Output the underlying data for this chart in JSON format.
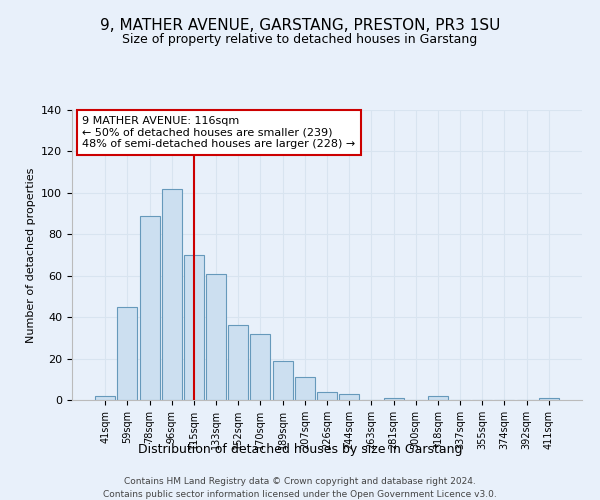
{
  "title": "9, MATHER AVENUE, GARSTANG, PRESTON, PR3 1SU",
  "subtitle": "Size of property relative to detached houses in Garstang",
  "xlabel": "Distribution of detached houses by size in Garstang",
  "ylabel": "Number of detached properties",
  "bar_labels": [
    "41sqm",
    "59sqm",
    "78sqm",
    "96sqm",
    "115sqm",
    "133sqm",
    "152sqm",
    "170sqm",
    "189sqm",
    "207sqm",
    "226sqm",
    "244sqm",
    "263sqm",
    "281sqm",
    "300sqm",
    "318sqm",
    "337sqm",
    "355sqm",
    "374sqm",
    "392sqm",
    "411sqm"
  ],
  "bar_values": [
    2,
    45,
    89,
    102,
    70,
    61,
    36,
    32,
    19,
    11,
    4,
    3,
    0,
    1,
    0,
    2,
    0,
    0,
    0,
    0,
    1
  ],
  "bar_color": "#ccdff0",
  "bar_edge_color": "#6699bb",
  "vline_index": 4,
  "vline_color": "#cc0000",
  "annotation_line1": "9 MATHER AVENUE: 116sqm",
  "annotation_line2": "← 50% of detached houses are smaller (239)",
  "annotation_line3": "48% of semi-detached houses are larger (228) →",
  "annotation_box_facecolor": "#ffffff",
  "annotation_box_edgecolor": "#cc0000",
  "ylim": [
    0,
    140
  ],
  "yticks": [
    0,
    20,
    40,
    60,
    80,
    100,
    120,
    140
  ],
  "grid_color": "#d8e4f0",
  "bg_color": "#e8f0fa",
  "footer_line1": "Contains HM Land Registry data © Crown copyright and database right 2024.",
  "footer_line2": "Contains public sector information licensed under the Open Government Licence v3.0."
}
